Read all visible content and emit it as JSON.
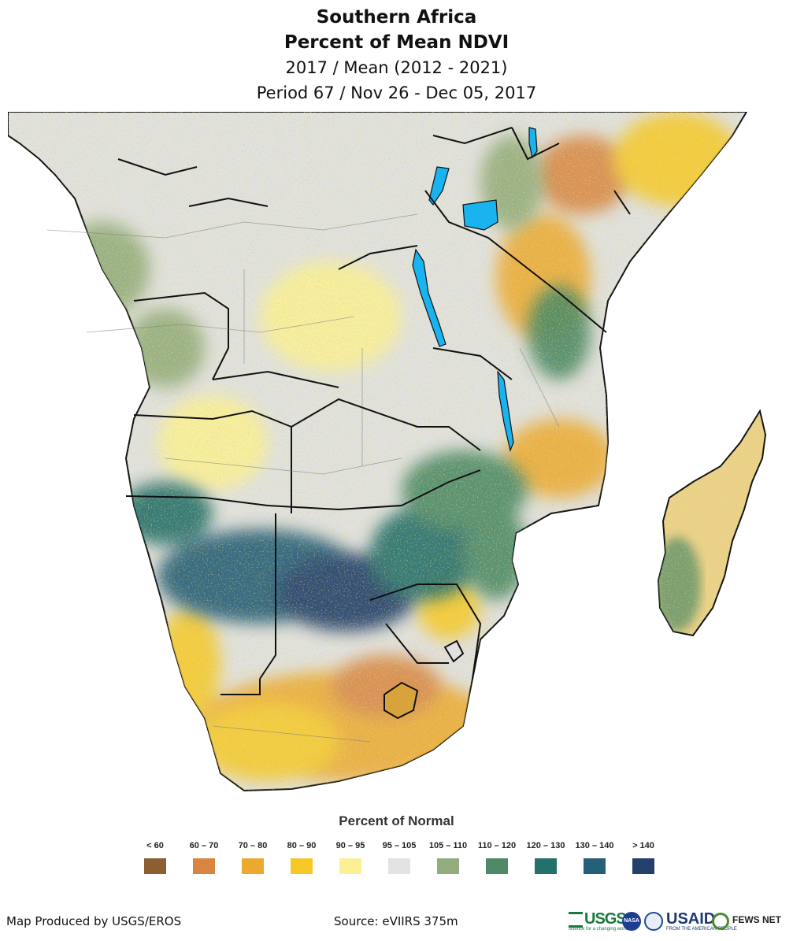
{
  "header": {
    "region": "Southern Africa",
    "product": "Percent of Mean NDVI",
    "comparison": "2017 / Mean (2012 - 2021)",
    "period": "Period 67 / Nov 26 - Dec 05, 2017"
  },
  "map": {
    "palette": {
      "ocean": "#ffffff",
      "land_normal": "#e1e1df",
      "water": "#19b3f0",
      "border": "#1a1a1a",
      "admin": "#7a7a7a"
    }
  },
  "legend": {
    "title": "Percent of Normal",
    "classes": [
      {
        "label": "< 60",
        "color": "#8c5e34"
      },
      {
        "label": "60 – 70",
        "color": "#d88540"
      },
      {
        "label": "70 – 80",
        "color": "#eca92f"
      },
      {
        "label": "80 – 90",
        "color": "#f6c827"
      },
      {
        "label": "90 – 95",
        "color": "#fbf194"
      },
      {
        "label": "95 – 105",
        "color": "#e3e3e3"
      },
      {
        "label": "105 – 110",
        "color": "#94ad7e"
      },
      {
        "label": "110 – 120",
        "color": "#4e8a68"
      },
      {
        "label": "120 – 130",
        "color": "#26706c"
      },
      {
        "label": "130 – 140",
        "color": "#265f78"
      },
      {
        "label": "> 140",
        "color": "#243f6a"
      }
    ]
  },
  "footer": {
    "credit": "Map Produced by USGS/EROS",
    "source": "Source: eVIIRS 375m"
  },
  "logos": {
    "usgs": "USGS",
    "usgs_tagline": "science for a changing world",
    "nasa": "NASA",
    "usaid": "USAID",
    "usaid_tagline": "FROM THE AMERICAN PEOPLE",
    "fews": "FEWS NET"
  }
}
